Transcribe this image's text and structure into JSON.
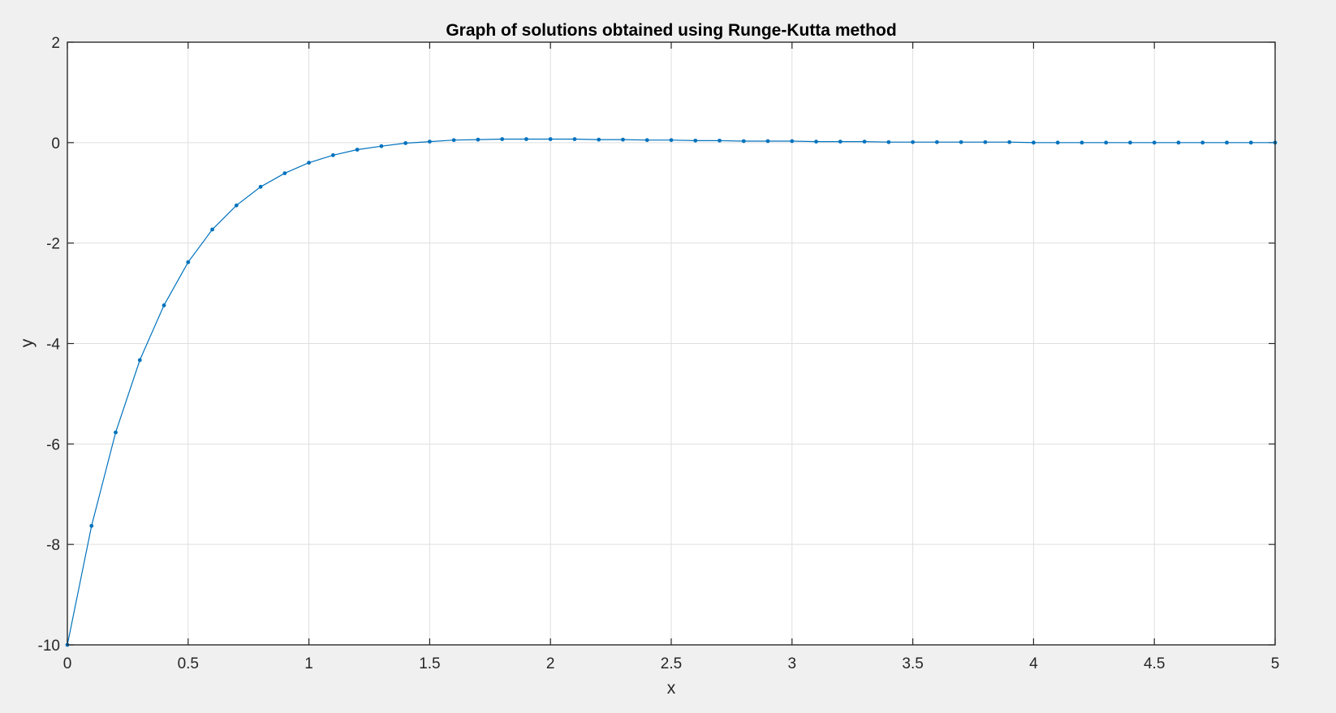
{
  "colors": {
    "figure_background": "#f0f0f0",
    "axes_background": "#ffffff",
    "series": "#0072bd",
    "grid": "#dfdfdf",
    "axis": "#262626"
  },
  "chart_data": {
    "type": "line",
    "title": "Graph of solutions obtained using Runge-Kutta method",
    "xlabel": "x",
    "ylabel": "y",
    "xlim": [
      0,
      5
    ],
    "ylim": [
      -10,
      2
    ],
    "grid": true,
    "markers": true,
    "x_ticks": [
      0,
      0.5,
      1,
      1.5,
      2,
      2.5,
      3,
      3.5,
      4,
      4.5,
      5
    ],
    "x_tick_labels": [
      "0",
      "0.5",
      "1",
      "1.5",
      "2",
      "2.5",
      "3",
      "3.5",
      "4",
      "4.5",
      "5"
    ],
    "y_ticks": [
      -10,
      -8,
      -6,
      -4,
      -2,
      0,
      2
    ],
    "y_tick_labels": [
      "-10",
      "-8",
      "-6",
      "-4",
      "-2",
      "0",
      "2"
    ],
    "series": [
      {
        "x": [
          0,
          0.1,
          0.2,
          0.3,
          0.4,
          0.5,
          0.6,
          0.7,
          0.8,
          0.9,
          1.0,
          1.1,
          1.2,
          1.3,
          1.4,
          1.5,
          1.6,
          1.7,
          1.8,
          1.9,
          2.0,
          2.1,
          2.2,
          2.3,
          2.4,
          2.5,
          2.6,
          2.7,
          2.8,
          2.9,
          3.0,
          3.1,
          3.2,
          3.3,
          3.4,
          3.5,
          3.6,
          3.7,
          3.8,
          3.9,
          4.0,
          4.1,
          4.2,
          4.3,
          4.4,
          4.5,
          4.6,
          4.7,
          4.8,
          4.9,
          5.0
        ],
        "y": [
          -10,
          -7.63,
          -5.77,
          -4.33,
          -3.24,
          -2.38,
          -1.73,
          -1.25,
          -0.88,
          -0.61,
          -0.4,
          -0.25,
          -0.14,
          -0.07,
          -0.01,
          0.02,
          0.05,
          0.06,
          0.07,
          0.07,
          0.07,
          0.07,
          0.06,
          0.06,
          0.05,
          0.05,
          0.04,
          0.04,
          0.03,
          0.03,
          0.03,
          0.02,
          0.02,
          0.02,
          0.01,
          0.01,
          0.01,
          0.01,
          0.01,
          0.01,
          0.0,
          0.0,
          0.0,
          0.0,
          0.0,
          0.0,
          0.0,
          0.0,
          0.0,
          0.0,
          0.0
        ]
      }
    ]
  }
}
